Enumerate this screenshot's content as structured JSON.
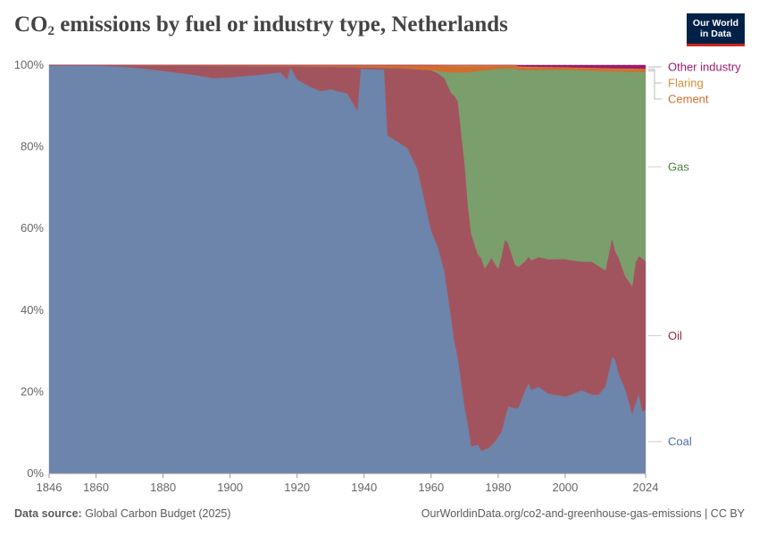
{
  "header": {
    "title_pre": "CO",
    "title_sub": "2",
    "title_post": " emissions by fuel or industry type, Netherlands",
    "logo_line1": "Our World",
    "logo_line2": "in Data"
  },
  "footer": {
    "source_label": "Data source:",
    "source_value": "Global Carbon Budget (2025)",
    "url": "OurWorldinData.org/co2-and-greenhouse-gas-emissions | CC BY"
  },
  "chart_data": {
    "type": "area",
    "stacked": "percent",
    "title": "CO₂ emissions by fuel or industry type, Netherlands",
    "xlim": [
      1846,
      2024
    ],
    "ylim": [
      0,
      100
    ],
    "x_ticks": [
      "1846",
      "1860",
      "1880",
      "1900",
      "1920",
      "1940",
      "1960",
      "1980",
      "2000",
      "2024"
    ],
    "y_ticks": [
      "0%",
      "20%",
      "40%",
      "60%",
      "80%",
      "100%"
    ],
    "series_order": [
      "Coal",
      "Oil",
      "Gas",
      "Cement",
      "Flaring",
      "Other industry"
    ],
    "series": [
      {
        "name": "Coal",
        "color": "#6d84ab",
        "points": [
          [
            1846,
            100
          ],
          [
            1860,
            100
          ],
          [
            1865,
            99.8
          ],
          [
            1870,
            99
          ],
          [
            1880,
            98
          ],
          [
            1890,
            97
          ],
          [
            1895,
            96.2
          ],
          [
            1900,
            96.5
          ],
          [
            1905,
            96.8
          ],
          [
            1910,
            97.2
          ],
          [
            1915,
            97.8
          ],
          [
            1917,
            96
          ],
          [
            1918,
            99.5
          ],
          [
            1920,
            96
          ],
          [
            1924,
            94
          ],
          [
            1927,
            93
          ],
          [
            1930,
            93.5
          ],
          [
            1935,
            92.5
          ],
          [
            1938,
            88
          ],
          [
            1939,
            99.5
          ],
          [
            1946,
            99.3
          ],
          [
            1947,
            82.5
          ],
          [
            1950,
            81
          ],
          [
            1953,
            79.5
          ],
          [
            1956,
            74
          ],
          [
            1960,
            59
          ],
          [
            1962,
            55
          ],
          [
            1964,
            49
          ],
          [
            1966,
            38
          ],
          [
            1968,
            28
          ],
          [
            1970,
            16
          ],
          [
            1972,
            6.5
          ],
          [
            1974,
            7
          ],
          [
            1975,
            5.5
          ],
          [
            1977,
            6
          ],
          [
            1979,
            7.5
          ],
          [
            1981,
            10
          ],
          [
            1983,
            17
          ],
          [
            1986,
            16
          ],
          [
            1988,
            20
          ],
          [
            1989,
            22
          ],
          [
            1990,
            20
          ],
          [
            1992,
            21
          ],
          [
            1995,
            19
          ],
          [
            2000,
            18.5
          ],
          [
            2002,
            19
          ],
          [
            2005,
            20
          ],
          [
            2008,
            19
          ],
          [
            2010,
            19
          ],
          [
            2012,
            21
          ],
          [
            2014,
            28
          ],
          [
            2015,
            27
          ],
          [
            2016,
            24
          ],
          [
            2018,
            20
          ],
          [
            2020,
            14.5
          ],
          [
            2021,
            17
          ],
          [
            2022,
            19
          ],
          [
            2023,
            15
          ],
          [
            2024,
            15.5
          ]
        ]
      },
      {
        "name": "Oil",
        "color": "#a2545e",
        "points": [
          [
            1846,
            0
          ],
          [
            1860,
            0
          ],
          [
            1870,
            0.4
          ],
          [
            1880,
            1.3
          ],
          [
            1890,
            2.3
          ],
          [
            1895,
            3
          ],
          [
            1900,
            2.8
          ],
          [
            1910,
            2
          ],
          [
            1915,
            1.5
          ],
          [
            1917,
            3.2
          ],
          [
            1918,
            0.2
          ],
          [
            1920,
            3.2
          ],
          [
            1924,
            5
          ],
          [
            1927,
            6
          ],
          [
            1930,
            5.5
          ],
          [
            1935,
            6.5
          ],
          [
            1938,
            10.5
          ],
          [
            1939,
            0.4
          ],
          [
            1946,
            0.5
          ],
          [
            1947,
            16.5
          ],
          [
            1950,
            18
          ],
          [
            1953,
            19.5
          ],
          [
            1956,
            24.5
          ],
          [
            1960,
            39
          ],
          [
            1962,
            42
          ],
          [
            1964,
            47
          ],
          [
            1966,
            55
          ],
          [
            1967,
            62
          ],
          [
            1968,
            62.5
          ],
          [
            1969,
            60
          ],
          [
            1970,
            59
          ],
          [
            1971,
            50
          ],
          [
            1972,
            51
          ],
          [
            1974,
            46
          ],
          [
            1975,
            47
          ],
          [
            1976,
            43
          ],
          [
            1978,
            45
          ],
          [
            1980,
            40
          ],
          [
            1982,
            44
          ],
          [
            1985,
            36
          ],
          [
            1988,
            31
          ],
          [
            1990,
            31
          ],
          [
            1995,
            32
          ],
          [
            2000,
            33
          ],
          [
            2005,
            31
          ],
          [
            2008,
            32
          ],
          [
            2010,
            31
          ],
          [
            2012,
            28
          ],
          [
            2014,
            28.5
          ],
          [
            2015,
            26
          ],
          [
            2016,
            28
          ],
          [
            2018,
            27
          ],
          [
            2020,
            31
          ],
          [
            2021,
            34
          ],
          [
            2022,
            33
          ],
          [
            2023,
            37
          ],
          [
            2024,
            36
          ]
        ]
      },
      {
        "name": "Gas",
        "color": "#7a9e6c",
        "points": [
          [
            1846,
            0
          ],
          [
            1960,
            0
          ],
          [
            1962,
            0.5
          ],
          [
            1964,
            1.5
          ],
          [
            1966,
            5
          ],
          [
            1968,
            7
          ],
          [
            1970,
            22
          ],
          [
            1972,
            39
          ],
          [
            1974,
            44.5
          ],
          [
            1976,
            47
          ],
          [
            1978,
            45
          ],
          [
            1980,
            47.5
          ],
          [
            1982,
            42
          ],
          [
            1985,
            49
          ],
          [
            1988,
            46
          ],
          [
            1990,
            45.5
          ],
          [
            1995,
            45
          ],
          [
            2000,
            45.5
          ],
          [
            2005,
            46
          ],
          [
            2008,
            46
          ],
          [
            2010,
            47
          ],
          [
            2012,
            48
          ],
          [
            2014,
            40
          ],
          [
            2015,
            43
          ],
          [
            2016,
            45
          ],
          [
            2018,
            49
          ],
          [
            2020,
            52
          ],
          [
            2021,
            46
          ],
          [
            2022,
            44
          ],
          [
            2023,
            45
          ],
          [
            2024,
            46
          ]
        ]
      },
      {
        "name": "Cement",
        "color": "#cf6e2e",
        "points": [
          [
            1846,
            0
          ],
          [
            1925,
            0.3
          ],
          [
            1950,
            0.7
          ],
          [
            1960,
            1.2
          ],
          [
            1965,
            1.6
          ],
          [
            1970,
            1.5
          ],
          [
            1980,
            0.7
          ],
          [
            1990,
            0.6
          ],
          [
            2000,
            0.5
          ],
          [
            2010,
            0.6
          ],
          [
            2024,
            0.6
          ]
        ]
      },
      {
        "name": "Flaring",
        "color": "#d08f36",
        "points": [
          [
            1846,
            0
          ],
          [
            1960,
            0
          ],
          [
            1962,
            0.1
          ],
          [
            1970,
            0.3
          ],
          [
            1980,
            0.2
          ],
          [
            1990,
            0.2
          ],
          [
            2000,
            0.1
          ],
          [
            2024,
            0.2
          ]
        ]
      },
      {
        "name": "Other industry",
        "color": "#9e1c6b",
        "points": [
          [
            1846,
            0
          ],
          [
            1985,
            0
          ],
          [
            1986,
            0.3
          ],
          [
            1990,
            0.4
          ],
          [
            2000,
            0.5
          ],
          [
            2010,
            0.7
          ],
          [
            2024,
            0.9
          ]
        ]
      }
    ],
    "legend": [
      {
        "name": "Other industry",
        "label": "Other industry",
        "color": "#9e1c6b"
      },
      {
        "name": "Flaring",
        "label": "Flaring",
        "color": "#d08f36"
      },
      {
        "name": "Cement",
        "label": "Cement",
        "color": "#cf6e2e"
      },
      {
        "name": "Gas",
        "label": "Gas",
        "color": "#4f7f40"
      },
      {
        "name": "Oil",
        "label": "Oil",
        "color": "#8c2e3f"
      },
      {
        "name": "Coal",
        "label": "Coal",
        "color": "#4d6e9f"
      }
    ]
  }
}
